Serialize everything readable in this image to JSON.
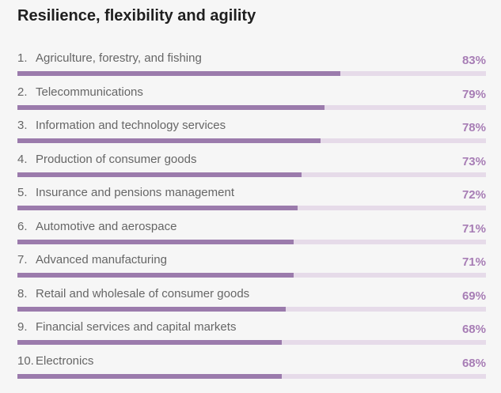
{
  "colors": {
    "background": "#f6f6f6",
    "bar_fill": "#9b7bac",
    "bar_track": "#e6dbe9",
    "value_text": "#a77db5",
    "label_text": "#666666",
    "title_text": "#1f1f1f"
  },
  "chart_data": {
    "type": "bar",
    "orientation": "horizontal",
    "title": "Resilience, flexibility and agility",
    "xlim": [
      0,
      100
    ],
    "unit": "%",
    "categories": [
      "Agriculture, forestry, and fishing",
      "Telecommunications",
      "Information and technology services",
      "Production of consumer goods",
      "Insurance and pensions management",
      "Automotive and aerospace",
      "Advanced manufacturing",
      "Retail and wholesale of consumer goods",
      "Financial services and capital markets",
      "Electronics"
    ],
    "ranks": [
      "1.",
      "2.",
      "3.",
      "4.",
      "5.",
      "6.",
      "7.",
      "8.",
      "9.",
      "10."
    ],
    "values": [
      83,
      79,
      78,
      73,
      72,
      71,
      71,
      69,
      68,
      68
    ],
    "value_labels": [
      "83%",
      "79%",
      "78%",
      "73%",
      "72%",
      "71%",
      "71%",
      "69%",
      "68%",
      "68%"
    ]
  }
}
